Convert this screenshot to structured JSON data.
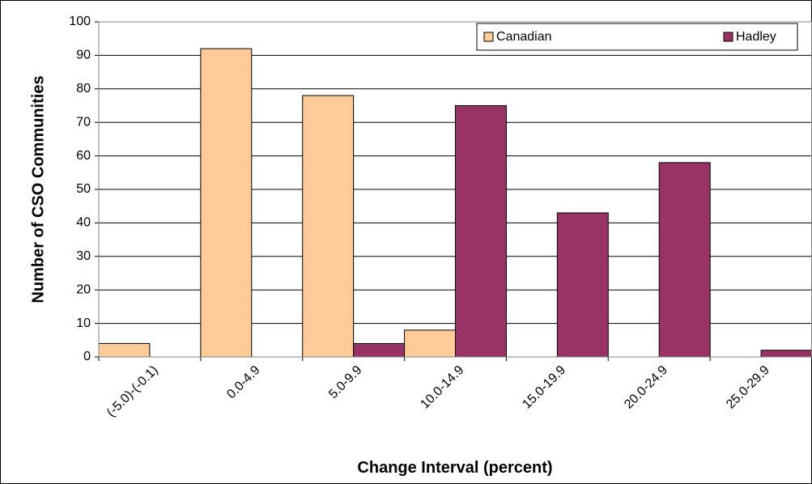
{
  "chart_data": {
    "type": "bar",
    "x_label": "Change Interval (percent)",
    "y_label": "Number of CSO Communities",
    "categories": [
      "(-5.0)-(-0.1)",
      "0.0-4.9",
      "5.0-9.9",
      "10.0-14.9",
      "15.0-19.9",
      "20.0-24.9",
      "25.0-29.9"
    ],
    "series": [
      {
        "name": "Canadian",
        "color": "#ffcc99",
        "values": [
          4,
          92,
          78,
          8,
          0,
          0,
          0
        ]
      },
      {
        "name": "Hadley",
        "color": "#993366",
        "values": [
          0,
          0,
          4,
          75,
          43,
          58,
          2
        ]
      }
    ],
    "ylim": [
      0,
      100
    ],
    "yticks": [
      0,
      10,
      20,
      30,
      40,
      50,
      60,
      70,
      80,
      90,
      100
    ],
    "grid": true,
    "legend": "top-right"
  }
}
